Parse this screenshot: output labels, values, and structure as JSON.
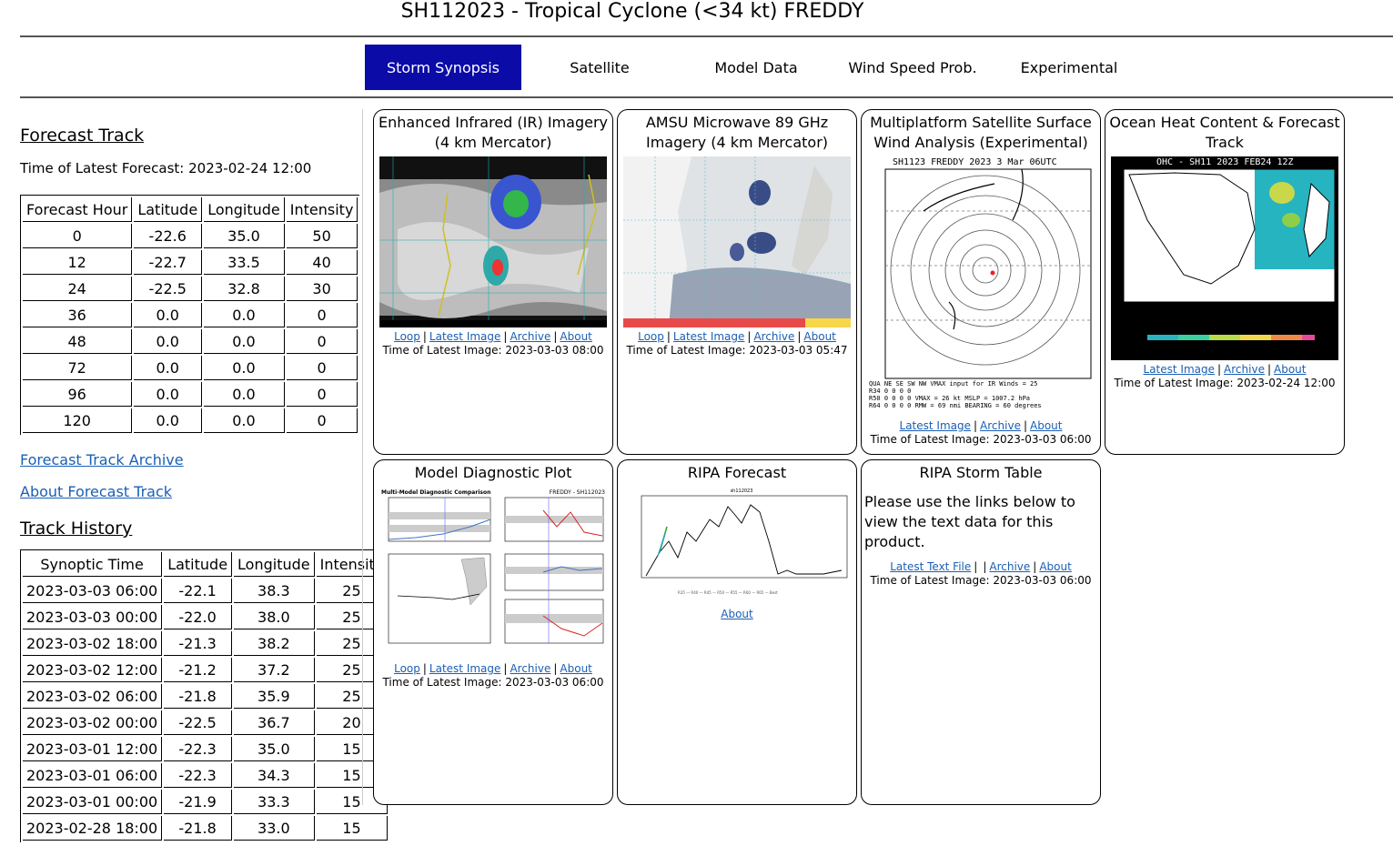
{
  "header": {
    "title": "SH112023 - Tropical Cyclone (<34 kt) FREDDY"
  },
  "nav": {
    "tabs": [
      {
        "label": "Storm Synopsis",
        "active": true
      },
      {
        "label": "Satellite"
      },
      {
        "label": "Model Data"
      },
      {
        "label": "Wind Speed Prob."
      },
      {
        "label": "Experimental"
      }
    ]
  },
  "forecast": {
    "title": "Forecast Track",
    "latest": "Time of Latest Forecast: 2023-02-24 12:00",
    "columns": [
      "Forecast Hour",
      "Latitude",
      "Longitude",
      "Intensity"
    ],
    "rows": [
      [
        "0",
        "-22.6",
        "35.0",
        "50"
      ],
      [
        "12",
        "-22.7",
        "33.5",
        "40"
      ],
      [
        "24",
        "-22.5",
        "32.8",
        "30"
      ],
      [
        "36",
        "0.0",
        "0.0",
        "0"
      ],
      [
        "48",
        "0.0",
        "0.0",
        "0"
      ],
      [
        "72",
        "0.0",
        "0.0",
        "0"
      ],
      [
        "96",
        "0.0",
        "0.0",
        "0"
      ],
      [
        "120",
        "0.0",
        "0.0",
        "0"
      ]
    ],
    "archive_link": "Forecast Track Archive",
    "about_link": "About Forecast Track"
  },
  "history": {
    "title": "Track History",
    "columns": [
      "Synoptic Time",
      "Latitude",
      "Longitude",
      "Intensity"
    ],
    "rows": [
      [
        "2023-03-03 06:00",
        "-22.1",
        "38.3",
        "25"
      ],
      [
        "2023-03-03 00:00",
        "-22.0",
        "38.0",
        "25"
      ],
      [
        "2023-03-02 18:00",
        "-21.3",
        "38.2",
        "25"
      ],
      [
        "2023-03-02 12:00",
        "-21.2",
        "37.2",
        "25"
      ],
      [
        "2023-03-02 06:00",
        "-21.8",
        "35.9",
        "25"
      ],
      [
        "2023-03-02 00:00",
        "-22.5",
        "36.7",
        "20"
      ],
      [
        "2023-03-01 12:00",
        "-22.3",
        "35.0",
        "15"
      ],
      [
        "2023-03-01 06:00",
        "-22.3",
        "34.3",
        "15"
      ],
      [
        "2023-03-01 00:00",
        "-21.9",
        "33.3",
        "15"
      ],
      [
        "2023-02-28 18:00",
        "-21.8",
        "33.0",
        "15"
      ]
    ]
  },
  "cards": {
    "ir": {
      "title": "Enhanced Infrared (IR) Imagery (4 km Mercator)",
      "links": [
        "Loop",
        "Latest Image",
        "Archive",
        "About"
      ],
      "time": "Time of Latest Image: 2023-03-03 08:00"
    },
    "amsu": {
      "title": "AMSU Microwave 89 GHz Imagery (4 km Mercator)",
      "links": [
        "Loop",
        "Latest Image",
        "Archive",
        "About"
      ],
      "time": "Time of Latest Image: 2023-03-03 05:47"
    },
    "wind": {
      "title": "Multiplatform Satellite Surface Wind Analysis (Experimental)",
      "links": [
        "Latest Image",
        "Archive",
        "About"
      ],
      "time": "Time of Latest Image: 2023-03-03 06:00",
      "image_header": "SH1123      FREDDY  2023    3 Mar 06UTC",
      "image_footer_1": "QUA  NE  SE  SW  NW  VMAX input for IR Winds =  25",
      "image_footer_2": "R34  0   0   0   0",
      "image_footer_3": "R50  0   0   0   0    VMAX =  26 kt MSLP = 1007.2 hPa",
      "image_footer_4": "R64  0   0   0   0    RMW =  69 nmi BEARING =  60 degrees"
    },
    "ohc": {
      "title": "Ocean Heat Content & Forecast Track",
      "links": [
        "Latest Image",
        "Archive",
        "About"
      ],
      "time": "Time of Latest Image: 2023-02-24 12:00",
      "image_header": "OHC - SH11  2023 FEB24 12Z"
    },
    "diag": {
      "title": "Model Diagnostic Plot",
      "links": [
        "Loop",
        "Latest Image",
        "Archive",
        "About"
      ],
      "time": "Time of Latest Image: 2023-03-03 06:00",
      "image_header_left": "Multi-Model Diagnostic Comparison",
      "image_header_right": "FREDDY - SH112023"
    },
    "ripa": {
      "title": "RIPA Forecast",
      "links": [
        "About"
      ],
      "image_header": "sh112023"
    },
    "ripa_table": {
      "title": "RIPA Storm Table",
      "note": "Please use the links below to view the text data for this product.",
      "links": [
        "Latest Text File",
        "Archive",
        "About"
      ],
      "time": "Time of Latest Image: 2023-03-03 06:00"
    }
  },
  "colors": {
    "nav_active": "#0b0ba8",
    "link": "#1a5fb4",
    "visited": "#551a8b"
  }
}
